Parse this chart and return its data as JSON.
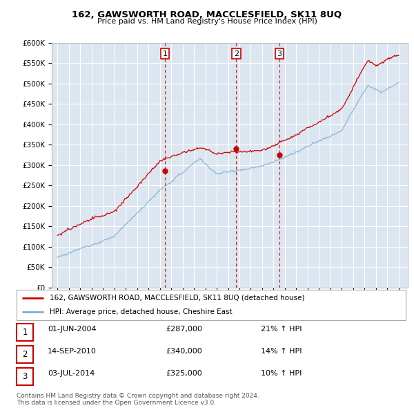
{
  "title": "162, GAWSWORTH ROAD, MACCLESFIELD, SK11 8UQ",
  "subtitle": "Price paid vs. HM Land Registry's House Price Index (HPI)",
  "plot_bg_color": "#dce6f0",
  "grid_color": "#ffffff",
  "red_line_color": "#cc0000",
  "blue_line_color": "#7bafd4",
  "marker1_date": 2004.46,
  "marker2_date": 2010.71,
  "marker3_date": 2014.51,
  "marker1_price": 287000,
  "marker2_price": 340000,
  "marker3_price": 325000,
  "legend_red": "162, GAWSWORTH ROAD, MACCLESFIELD, SK11 8UQ (detached house)",
  "legend_blue": "HPI: Average price, detached house, Cheshire East",
  "table_rows": [
    [
      "1",
      "01-JUN-2004",
      "£287,000",
      "21% ↑ HPI"
    ],
    [
      "2",
      "14-SEP-2010",
      "£340,000",
      "14% ↑ HPI"
    ],
    [
      "3",
      "03-JUL-2014",
      "£325,000",
      "10% ↑ HPI"
    ]
  ],
  "footer": "Contains HM Land Registry data © Crown copyright and database right 2024.\nThis data is licensed under the Open Government Licence v3.0.",
  "ylim": [
    0,
    600000
  ],
  "yticks": [
    0,
    50000,
    100000,
    150000,
    200000,
    250000,
    300000,
    350000,
    400000,
    450000,
    500000,
    550000,
    600000
  ],
  "xlim_start": 1994.5,
  "xlim_end": 2025.8
}
